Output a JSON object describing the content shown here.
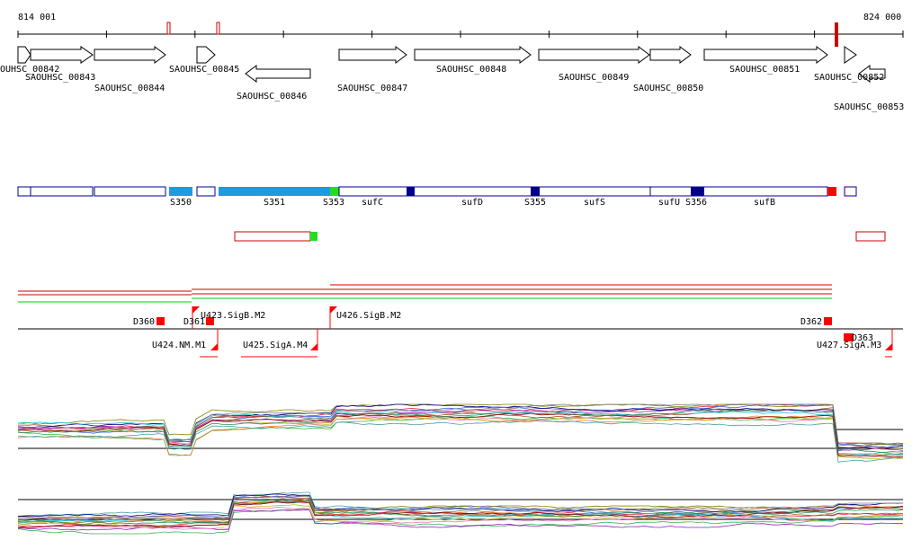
{
  "ruler": {
    "start": "814 001",
    "end": "824 000"
  },
  "genes": [
    {
      "label": "OUHSC_00842"
    },
    {
      "label": "SAOUHSC_00843"
    },
    {
      "label": "SAOUHSC_00844"
    },
    {
      "label": "SAOUHSC_00845"
    },
    {
      "label": "SAOUHSC_00846"
    },
    {
      "label": "SAOUHSC_00847"
    },
    {
      "label": "SAOUHSC_00848"
    },
    {
      "label": "SAOUHSC_00849"
    },
    {
      "label": "SAOUHSC_00850"
    },
    {
      "label": "SAOUHSC_00851"
    },
    {
      "label": "SAOUHSC_00852"
    },
    {
      "label": "SAOUHSC_00853"
    }
  ],
  "segments": [
    {
      "label": "S350"
    },
    {
      "label": "S351"
    },
    {
      "label": "S353"
    },
    {
      "label": "sufC"
    },
    {
      "label": "sufD"
    },
    {
      "label": "S355"
    },
    {
      "label": "sufS"
    },
    {
      "label": "sufU"
    },
    {
      "label": "S356"
    },
    {
      "label": "sufB"
    }
  ],
  "promoters": [
    {
      "label": "D360"
    },
    {
      "label": "D361"
    },
    {
      "label": "U423.SigB.M2"
    },
    {
      "label": "U426.SigB.M2"
    },
    {
      "label": "D362"
    },
    {
      "label": "D363"
    },
    {
      "label": "U424.NM.M1"
    },
    {
      "label": "U425.SigA.M4"
    },
    {
      "label": "U427.SigA.M3"
    }
  ]
}
